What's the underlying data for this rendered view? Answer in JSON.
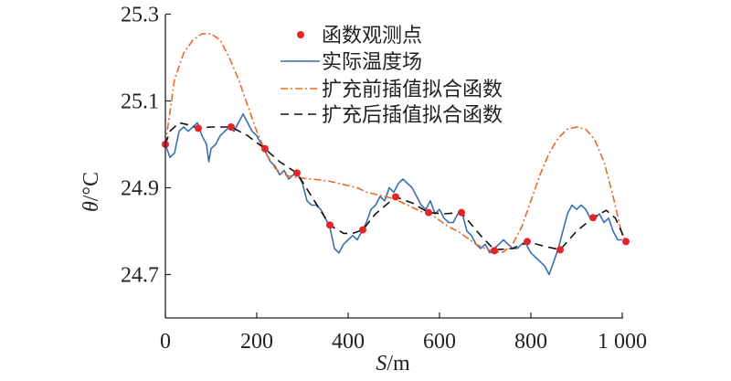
{
  "chart_data": {
    "type": "line",
    "title": "",
    "xlabel": {
      "italic": "S",
      "rest": "/m"
    },
    "ylabel": {
      "italic": "θ",
      "rest": "/°C"
    },
    "xlim": [
      0,
      1000
    ],
    "ylim": [
      24.6,
      25.3
    ],
    "xticks": [
      0,
      200,
      400,
      600,
      800,
      1000
    ],
    "xtick_labels": [
      "0",
      "200",
      "400",
      "600",
      "800",
      "1 000"
    ],
    "yticks": [
      24.7,
      24.9,
      25.1,
      25.3
    ],
    "ytick_labels": [
      "24.7",
      "24.9",
      "25.1",
      "25.3"
    ],
    "grid": false,
    "legend_position": "top-right",
    "series": [
      {
        "name": "函数观测点",
        "kind": "points",
        "color": "#e3262b",
        "x": [
          0,
          72,
          144,
          218,
          288,
          360,
          432,
          504,
          576,
          648,
          720,
          792,
          864,
          936,
          1008
        ],
        "y": [
          25.0,
          25.037,
          25.04,
          24.99,
          24.934,
          24.814,
          24.803,
          24.879,
          24.843,
          24.843,
          24.755,
          24.776,
          24.757,
          24.831,
          24.776
        ]
      },
      {
        "name": "实际温度场",
        "kind": "solid",
        "color": "#3a6fb0",
        "x": [
          0,
          10,
          20,
          30,
          40,
          50,
          60,
          70,
          80,
          90,
          95,
          100,
          110,
          120,
          130,
          140,
          150,
          160,
          170,
          180,
          190,
          200,
          210,
          220,
          230,
          240,
          250,
          260,
          270,
          280,
          290,
          300,
          310,
          320,
          330,
          340,
          350,
          360,
          370,
          380,
          390,
          400,
          410,
          420,
          430,
          440,
          450,
          460,
          470,
          480,
          490,
          500,
          510,
          520,
          530,
          540,
          550,
          560,
          570,
          580,
          590,
          600,
          610,
          620,
          630,
          640,
          650,
          660,
          670,
          680,
          690,
          700,
          710,
          720,
          730,
          740,
          750,
          760,
          770,
          780,
          790,
          800,
          810,
          820,
          830,
          840,
          850,
          860,
          870,
          880,
          890,
          900,
          910,
          920,
          930,
          940,
          950,
          960,
          970,
          980,
          990,
          1000
        ],
        "y": [
          25.0,
          24.97,
          24.98,
          25.03,
          25.04,
          25.03,
          25.04,
          25.05,
          25.02,
          25.0,
          24.96,
          24.99,
          25.0,
          25.02,
          25.03,
          25.04,
          25.03,
          25.05,
          25.07,
          25.05,
          25.03,
          25.02,
          25.0,
          24.98,
          24.96,
          24.95,
          24.93,
          24.94,
          24.92,
          24.93,
          24.93,
          24.91,
          24.87,
          24.86,
          24.86,
          24.85,
          24.83,
          24.81,
          24.76,
          24.75,
          24.77,
          24.78,
          24.79,
          24.78,
          24.8,
          24.82,
          24.85,
          24.86,
          24.88,
          24.87,
          24.9,
          24.89,
          24.91,
          24.92,
          24.91,
          24.9,
          24.88,
          24.86,
          24.85,
          24.87,
          24.84,
          24.85,
          24.83,
          24.82,
          24.82,
          24.84,
          24.84,
          24.8,
          24.79,
          24.77,
          24.76,
          24.77,
          24.75,
          24.76,
          24.77,
          24.78,
          24.77,
          24.76,
          24.76,
          24.77,
          24.77,
          24.75,
          24.74,
          24.73,
          24.72,
          24.7,
          24.73,
          24.76,
          24.8,
          24.84,
          24.86,
          24.85,
          24.86,
          24.85,
          24.83,
          24.83,
          24.84,
          24.82,
          24.83,
          24.8,
          24.78,
          24.78
        ]
      },
      {
        "name": "扩充前插值拟合函数",
        "kind": "dashdot",
        "color": "#e8692a",
        "x": [
          0,
          20,
          40,
          60,
          80,
          100,
          120,
          140,
          160,
          180,
          200,
          220,
          240,
          260,
          280,
          300,
          320,
          340,
          360,
          380,
          400,
          420,
          440,
          460,
          480,
          500,
          520,
          540,
          560,
          580,
          600,
          620,
          640,
          660,
          680,
          700,
          720,
          740,
          760,
          780,
          800,
          820,
          840,
          860,
          880,
          900,
          920,
          940,
          960,
          980,
          1000,
          1008
        ],
        "y": [
          25.0,
          25.15,
          25.21,
          25.24,
          25.255,
          25.255,
          25.24,
          25.2,
          25.15,
          25.09,
          25.03,
          24.98,
          24.945,
          24.93,
          24.925,
          24.922,
          24.92,
          24.918,
          24.915,
          24.91,
          24.905,
          24.9,
          24.89,
          24.885,
          24.88,
          24.875,
          24.865,
          24.855,
          24.845,
          24.84,
          24.825,
          24.81,
          24.8,
          24.785,
          24.77,
          24.76,
          24.752,
          24.752,
          24.77,
          24.81,
          24.87,
          24.93,
          24.98,
          25.015,
          25.035,
          25.04,
          25.035,
          25.01,
          24.96,
          24.88,
          24.79,
          24.776
        ]
      },
      {
        "name": "扩充后插值拟合函数",
        "kind": "dashed",
        "color": "#111111",
        "x": [
          0,
          10,
          30,
          50,
          72,
          100,
          144,
          180,
          218,
          250,
          288,
          320,
          360,
          390,
          410,
          432,
          460,
          504,
          540,
          576,
          610,
          648,
          690,
          720,
          760,
          792,
          830,
          864,
          900,
          936,
          965,
          985,
          1008
        ],
        "y": [
          25.0,
          25.03,
          25.05,
          25.045,
          25.037,
          25.04,
          25.04,
          25.02,
          24.99,
          24.96,
          24.934,
          24.88,
          24.814,
          24.795,
          24.795,
          24.803,
          24.84,
          24.879,
          24.865,
          24.843,
          24.84,
          24.843,
          24.79,
          24.757,
          24.76,
          24.776,
          24.765,
          24.757,
          24.8,
          24.831,
          24.848,
          24.83,
          24.776
        ]
      }
    ]
  }
}
